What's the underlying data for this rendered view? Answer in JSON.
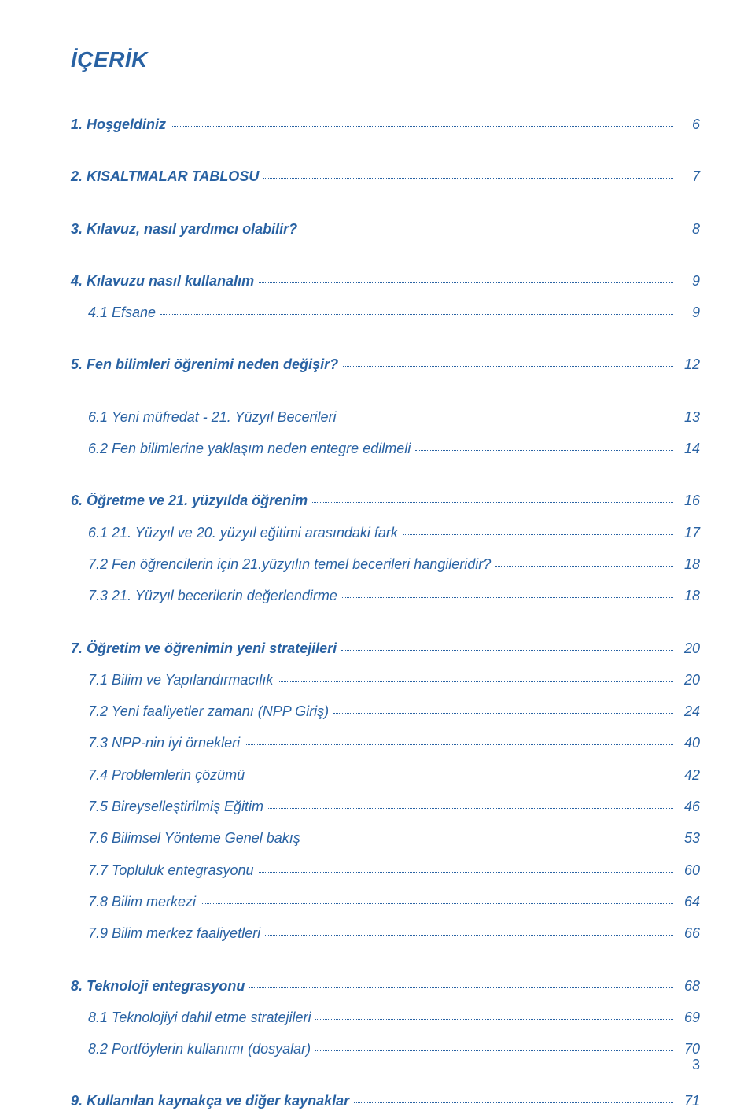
{
  "colors": {
    "text": "#2962a3",
    "background": "#ffffff",
    "leader": "#2962a3"
  },
  "typography": {
    "title_fontsize": 28,
    "entry_fontsize": 18,
    "font_family": "Arial, Helvetica, sans-serif",
    "italic": true
  },
  "page_number": "3",
  "title": "İÇERİK",
  "sections": [
    {
      "entries": [
        {
          "label": "1. Hoşgeldiniz",
          "page": "6",
          "bold": true,
          "indent": false
        }
      ]
    },
    {
      "entries": [
        {
          "label": "2. KISALTMALAR TABLOSU",
          "page": "7",
          "bold": true,
          "indent": false
        }
      ]
    },
    {
      "entries": [
        {
          "label": "3. Kılavuz, nasıl yardımcı olabilir?",
          "page": "8",
          "bold": true,
          "indent": false
        }
      ]
    },
    {
      "entries": [
        {
          "label": "4. Kılavuzu nasıl kullanalım",
          "page": "9",
          "bold": true,
          "indent": false
        },
        {
          "label": "4.1 Efsane",
          "page": "9",
          "bold": false,
          "indent": true
        }
      ]
    },
    {
      "entries": [
        {
          "label": "5. Fen bilimleri öğrenimi neden değişir?",
          "page": "12",
          "bold": true,
          "indent": false
        }
      ]
    },
    {
      "entries": [
        {
          "label": "6.1 Yeni müfredat - 21. Yüzyıl Becerileri",
          "page": "13",
          "bold": false,
          "indent": true
        },
        {
          "label": "6.2 Fen bilimlerine yaklaşım neden entegre edilmeli",
          "page": "14",
          "bold": false,
          "indent": true
        }
      ]
    },
    {
      "entries": [
        {
          "label": "6. Öğretme ve 21. yüzyılda öğrenim",
          "page": "16",
          "bold": true,
          "indent": false
        },
        {
          "label": "6.1 21. Yüzyıl ve 20. yüzyıl eğitimi arasındaki fark",
          "page": "17",
          "bold": false,
          "indent": true
        },
        {
          "label": "7.2 Fen öğrencilerin için 21.yüzyılın temel becerileri hangileridir?",
          "page": "18",
          "bold": false,
          "indent": true
        },
        {
          "label": "7.3 21. Yüzyıl becerilerin değerlendirme",
          "page": "18",
          "bold": false,
          "indent": true
        }
      ]
    },
    {
      "entries": [
        {
          "label": "7. Öğretim ve öğrenimin yeni stratejileri",
          "page": "20",
          "bold": true,
          "indent": false
        },
        {
          "label": "7.1 Bilim ve Yapılandırmacılık",
          "page": "20",
          "bold": false,
          "indent": true
        },
        {
          "label": "7.2 Yeni faaliyetler zamanı (NPP Giriş)",
          "page": "24",
          "bold": false,
          "indent": true
        },
        {
          "label": "7.3 NPP-nin iyi örnekleri",
          "page": "40",
          "bold": false,
          "indent": true
        },
        {
          "label": "7.4 Problemlerin çözümü",
          "page": "42",
          "bold": false,
          "indent": true
        },
        {
          "label": "7.5 Bireyselleştirilmiş Eğitim",
          "page": "46",
          "bold": false,
          "indent": true
        },
        {
          "label": "7.6 Bilimsel Yönteme Genel bakış",
          "page": "53",
          "bold": false,
          "indent": true
        },
        {
          "label": "7.7 Topluluk entegrasyonu",
          "page": "60",
          "bold": false,
          "indent": true
        },
        {
          "label": "7.8 Bilim merkezi",
          "page": "64",
          "bold": false,
          "indent": true
        },
        {
          "label": "7.9 Bilim merkez faaliyetleri",
          "page": "66",
          "bold": false,
          "indent": true
        }
      ]
    },
    {
      "entries": [
        {
          "label": "8. Teknoloji entegrasyonu",
          "page": "68",
          "bold": true,
          "indent": false
        },
        {
          "label": "8.1 Teknolojiyi dahil etme stratejileri",
          "page": "69",
          "bold": false,
          "indent": true
        },
        {
          "label": "8.2 Portföylerin kullanımı (dosyalar)",
          "page": "70",
          "bold": false,
          "indent": true
        }
      ]
    },
    {
      "entries": [
        {
          "label": "9. Kullanılan kaynakça ve diğer kaynaklar",
          "page": "71",
          "bold": true,
          "indent": false
        }
      ]
    }
  ]
}
